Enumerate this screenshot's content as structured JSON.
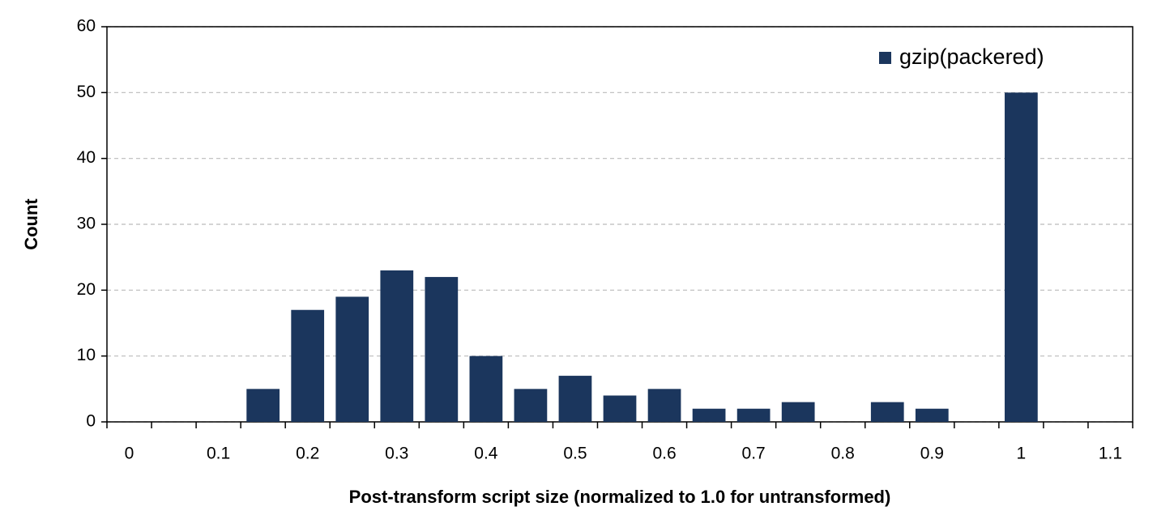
{
  "chart_data": {
    "type": "bar",
    "x_label": "Post-transform script size (normalized to 1.0 for untransformed)",
    "y_label": "Count",
    "categories": [
      "0",
      null,
      "0.1",
      null,
      "0.2",
      null,
      "0.3",
      null,
      "0.4",
      null,
      "0.5",
      null,
      "0.6",
      null,
      "0.7",
      null,
      "0.8",
      null,
      "0.9",
      null,
      "1",
      null,
      "1.1"
    ],
    "series": [
      {
        "name": "gzip(packered)",
        "color": "#1b365d",
        "values": [
          0,
          0,
          0,
          5,
          17,
          19,
          23,
          22,
          10,
          5,
          7,
          4,
          5,
          2,
          2,
          3,
          0,
          3,
          2,
          0,
          50,
          0,
          0
        ]
      }
    ],
    "ylim": [
      0,
      60
    ],
    "yticks": [
      0,
      10,
      20,
      30,
      40,
      50,
      60
    ],
    "grid": true,
    "legend": "top-right"
  }
}
